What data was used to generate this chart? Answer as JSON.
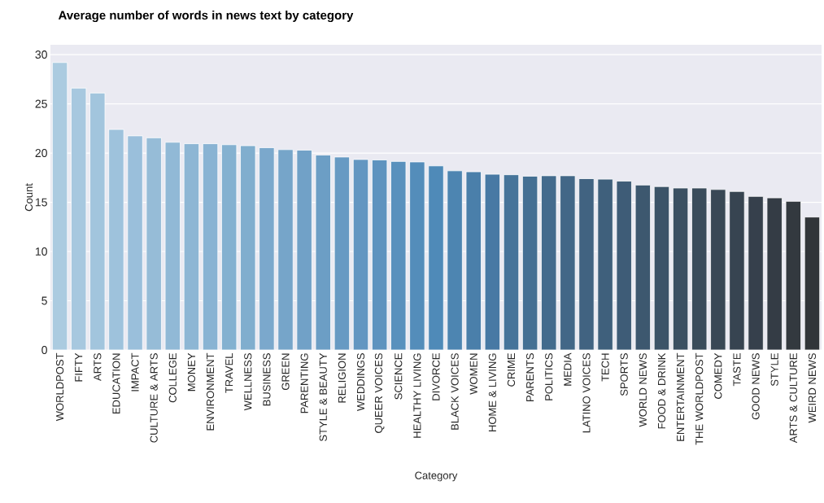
{
  "chart_data": {
    "type": "bar",
    "title": "Average number of words in news text by category",
    "xlabel": "Category",
    "ylabel": "Count",
    "categories": [
      "WORLDPOST",
      "FIFTY",
      "ARTS",
      "EDUCATION",
      "IMPACT",
      "CULTURE & ARTS",
      "COLLEGE",
      "MONEY",
      "ENVIRONMENT",
      "TRAVEL",
      "WELLNESS",
      "BUSINESS",
      "GREEN",
      "PARENTING",
      "STYLE & BEAUTY",
      "RELIGION",
      "WEDDINGS",
      "QUEER VOICES",
      "SCIENCE",
      "HEALTHY LIVING",
      "DIVORCE",
      "BLACK VOICES",
      "WOMEN",
      "HOME & LIVING",
      "CRIME",
      "PARENTS",
      "POLITICS",
      "MEDIA",
      "LATINO VOICES",
      "TECH",
      "SPORTS",
      "WORLD NEWS",
      "FOOD & DRINK",
      "ENTERTAINMENT",
      "THE WORLDPOST",
      "COMEDY",
      "TASTE",
      "GOOD NEWS",
      "STYLE",
      "ARTS & CULTURE",
      "WEIRD NEWS"
    ],
    "values": [
      29.2,
      26.6,
      26.1,
      22.4,
      21.75,
      21.55,
      21.1,
      20.95,
      20.95,
      20.85,
      20.75,
      20.55,
      20.35,
      20.3,
      19.8,
      19.6,
      19.35,
      19.3,
      19.15,
      19.1,
      18.7,
      18.2,
      18.1,
      17.85,
      17.8,
      17.65,
      17.7,
      17.7,
      17.4,
      17.35,
      17.15,
      16.75,
      16.6,
      16.45,
      16.45,
      16.3,
      16.1,
      15.6,
      15.45,
      15.1,
      13.5
    ],
    "colors": [
      "#abcbe0",
      "#a7c8df",
      "#a2c5dd",
      "#9ec2dc",
      "#9abfdb",
      "#96bcd7",
      "#91b9d6",
      "#8db6d4",
      "#89b3d3",
      "#84b1d0",
      "#80aece",
      "#7ba8cc",
      "#76a5c9",
      "#71a1c7",
      "#6c9ec5",
      "#679ac3",
      "#6396c1",
      "#5e93bf",
      "#5991bd",
      "#548dba",
      "#4f8ab8",
      "#4d85b1",
      "#4a7faa",
      "#4879a4",
      "#46749a",
      "#446f93",
      "#436b8d",
      "#426787",
      "#416381",
      "#3f607c",
      "#3e5c77",
      "#3d586f",
      "#3c5468",
      "#3b5062",
      "#3a4c5b",
      "#394855",
      "#374451",
      "#36404c",
      "#343c45",
      "#33393f",
      "#313539"
    ],
    "ylim": [
      0,
      31
    ],
    "yticks": [
      0,
      5,
      10,
      15,
      20,
      25,
      30
    ],
    "grid": "y"
  }
}
